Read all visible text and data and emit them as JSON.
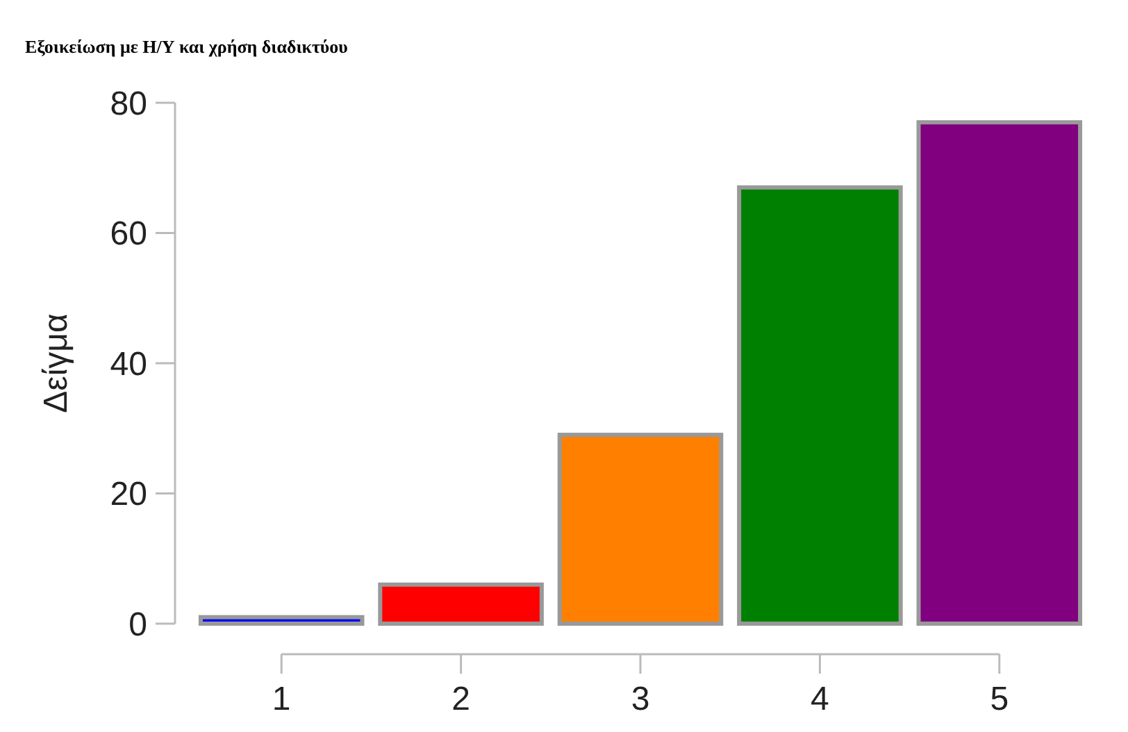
{
  "chart_data": {
    "type": "bar",
    "title": "Εξοικείωση με Η/Υ και χρήση διαδικτύου",
    "ylabel": "Δείγμα",
    "categories": [
      "1",
      "2",
      "3",
      "4",
      "5"
    ],
    "values": [
      1,
      6,
      29,
      67,
      77
    ],
    "colors": [
      "#0000ff",
      "#ff0000",
      "#ff8000",
      "#008000",
      "#800080"
    ],
    "ylim": [
      0,
      80
    ],
    "yticks": [
      0,
      20,
      40,
      60,
      80
    ]
  }
}
